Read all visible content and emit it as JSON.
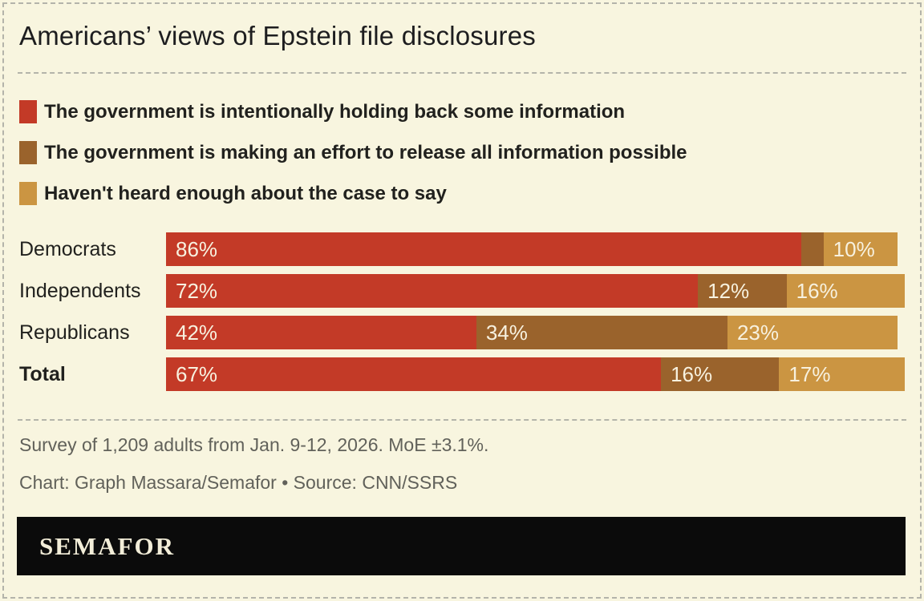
{
  "title": "Americans’ views of Epstein file disclosures",
  "chart_data": {
    "type": "bar",
    "variant": "horizontal-stacked",
    "categories": [
      "Democrats",
      "Independents",
      "Republicans",
      "Total"
    ],
    "emphasized_category": "Total",
    "series": [
      {
        "name": "The government is intentionally holding back some information",
        "color": "#c33a27",
        "values": [
          86,
          72,
          42,
          67
        ]
      },
      {
        "name": "The government is making an effort to release all information possible",
        "color": "#9a632c",
        "values": [
          3,
          12,
          34,
          16
        ]
      },
      {
        "name": "Haven't heard enough about the case to say",
        "color": "#cb9542",
        "values": [
          10,
          16,
          23,
          17
        ]
      }
    ],
    "value_suffix": "%",
    "xlim": [
      0,
      100
    ],
    "min_label_value": 6,
    "legend_position": "top",
    "grid": false
  },
  "notes": {
    "survey": "Survey of 1,209 adults from Jan. 9-12, 2026. MoE ±3.1%.",
    "credit": "Chart: Graph Massara/Semafor • Source: CNN/SSRS"
  },
  "logo": {
    "text": "SEMAFOR"
  },
  "colors": {
    "background": "#f8f5df",
    "border_dash": "#b4b4aa",
    "text": "#21211e",
    "muted_text": "#61615a",
    "bar_label": "#f7f1df",
    "logo_bg": "#0b0b0b",
    "logo_text": "#f2edd8"
  }
}
